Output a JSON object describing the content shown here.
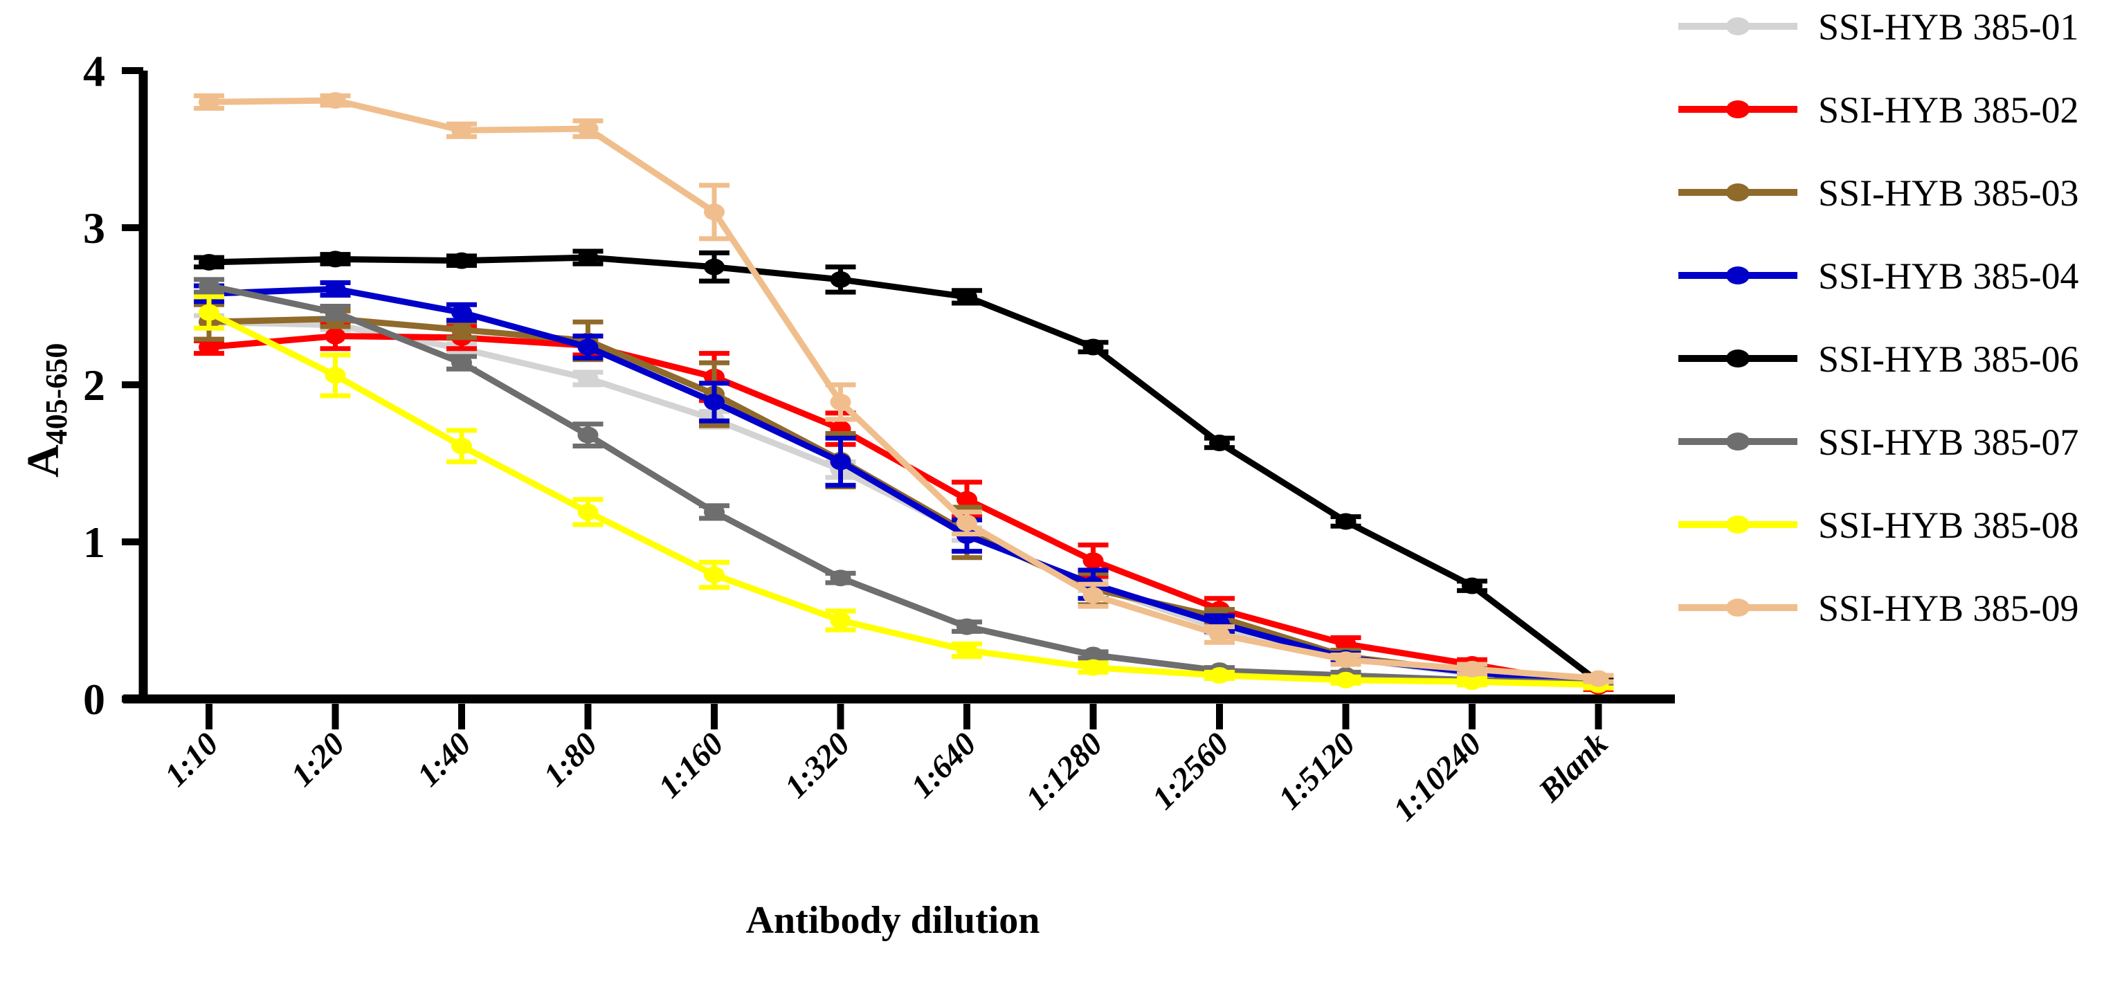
{
  "chart_data": {
    "type": "line",
    "title": "",
    "xlabel": "Antibody dilution",
    "ylabel": {
      "base": "A",
      "subscript": "405-650"
    },
    "categories": [
      "1:10",
      "1:20",
      "1:40",
      "1:80",
      "1:160",
      "1:320",
      "1:640",
      "1:1280",
      "1:2560",
      "1:5120",
      "1:10240",
      "Blank"
    ],
    "y_ticks": [
      0,
      1,
      2,
      3,
      4
    ],
    "ylim": [
      0,
      4
    ],
    "grid": false,
    "legend_position": "right",
    "error_bars": true,
    "marker": "circle",
    "series": [
      {
        "name": "SSI-HYB 385-01",
        "color": "#D3D3D3",
        "values": [
          2.4,
          2.38,
          2.23,
          2.04,
          1.78,
          1.46,
          1.05,
          0.72,
          0.45,
          0.26,
          0.16,
          0.1
        ],
        "errors": [
          0.04,
          0.03,
          0.03,
          0.04,
          0.05,
          0.05,
          0.04,
          0.03,
          0.03,
          0.02,
          0.02,
          0.01
        ]
      },
      {
        "name": "SSI-HYB 385-02",
        "color": "#FF0000",
        "values": [
          2.24,
          2.31,
          2.3,
          2.25,
          2.05,
          1.72,
          1.27,
          0.88,
          0.57,
          0.35,
          0.22,
          0.08
        ],
        "errors": [
          0.04,
          0.08,
          0.07,
          0.06,
          0.15,
          0.1,
          0.11,
          0.1,
          0.07,
          0.04,
          0.03,
          0.02
        ]
      },
      {
        "name": "SSI-HYB 385-03",
        "color": "#8F6A2B",
        "values": [
          2.4,
          2.42,
          2.35,
          2.28,
          1.94,
          1.52,
          1.06,
          0.7,
          0.52,
          0.27,
          0.17,
          0.1
        ],
        "errors": [
          0.11,
          0.05,
          0.05,
          0.12,
          0.2,
          0.17,
          0.16,
          0.1,
          0.05,
          0.04,
          0.03,
          0.02
        ]
      },
      {
        "name": "SSI-HYB 385-04",
        "color": "#0000C8",
        "values": [
          2.58,
          2.61,
          2.46,
          2.24,
          1.89,
          1.51,
          1.04,
          0.73,
          0.48,
          0.26,
          0.17,
          0.1
        ],
        "errors": [
          0.05,
          0.04,
          0.05,
          0.07,
          0.12,
          0.15,
          0.1,
          0.09,
          0.05,
          0.03,
          0.03,
          0.02
        ]
      },
      {
        "name": "SSI-HYB 385-06",
        "color": "#000000",
        "values": [
          2.78,
          2.8,
          2.79,
          2.81,
          2.75,
          2.67,
          2.56,
          2.24,
          1.63,
          1.13,
          0.72,
          0.11
        ],
        "errors": [
          0.03,
          0.03,
          0.03,
          0.04,
          0.09,
          0.08,
          0.04,
          0.03,
          0.03,
          0.03,
          0.03,
          0.02
        ]
      },
      {
        "name": "SSI-HYB 385-07",
        "color": "#6E6E6E",
        "values": [
          2.63,
          2.46,
          2.14,
          1.68,
          1.19,
          0.77,
          0.46,
          0.28,
          0.18,
          0.15,
          0.12,
          0.1
        ],
        "errors": [
          0.04,
          0.04,
          0.04,
          0.07,
          0.04,
          0.03,
          0.03,
          0.02,
          0.02,
          0.02,
          0.02,
          0.01
        ]
      },
      {
        "name": "SSI-HYB 385-08",
        "color": "#FFFF00",
        "values": [
          2.46,
          2.06,
          1.61,
          1.19,
          0.79,
          0.5,
          0.31,
          0.2,
          0.15,
          0.12,
          0.11,
          0.09
        ],
        "errors": [
          0.1,
          0.13,
          0.1,
          0.08,
          0.08,
          0.06,
          0.04,
          0.03,
          0.02,
          0.02,
          0.02,
          0.02
        ]
      },
      {
        "name": "SSI-HYB 385-09",
        "color": "#F0BE8C",
        "values": [
          3.8,
          3.81,
          3.62,
          3.63,
          3.1,
          1.89,
          1.12,
          0.66,
          0.41,
          0.25,
          0.19,
          0.13
        ],
        "errors": [
          0.04,
          0.03,
          0.04,
          0.05,
          0.17,
          0.11,
          0.07,
          0.07,
          0.05,
          0.03,
          0.03,
          0.02
        ]
      }
    ]
  },
  "page": {
    "background": "#FFFFFF"
  }
}
